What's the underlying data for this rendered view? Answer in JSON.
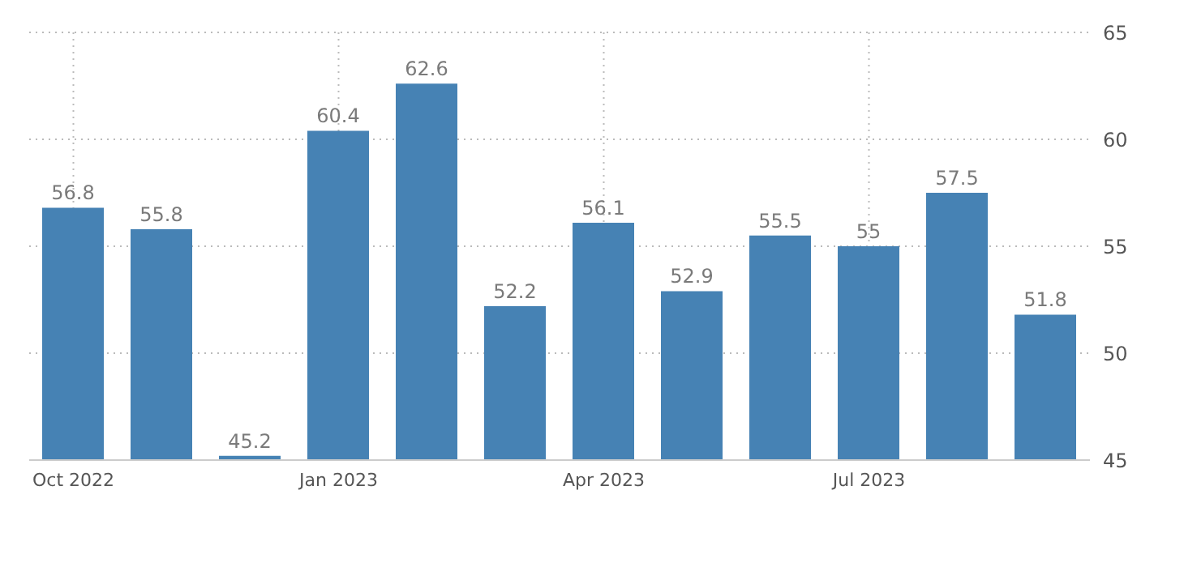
{
  "chart_data": {
    "type": "bar",
    "categories": [
      "Oct 2022",
      null,
      null,
      "Jan 2023",
      null,
      null,
      "Apr 2023",
      null,
      null,
      "Jul 2023",
      null,
      null
    ],
    "values": [
      56.8,
      55.8,
      45.2,
      60.4,
      62.6,
      52.2,
      56.1,
      52.9,
      55.5,
      55,
      57.5,
      51.8
    ],
    "color": "#4682b4",
    "ylim": [
      45,
      65
    ],
    "yticks": [
      45,
      50,
      55,
      60,
      65
    ],
    "grid": true,
    "data_labels": true
  }
}
